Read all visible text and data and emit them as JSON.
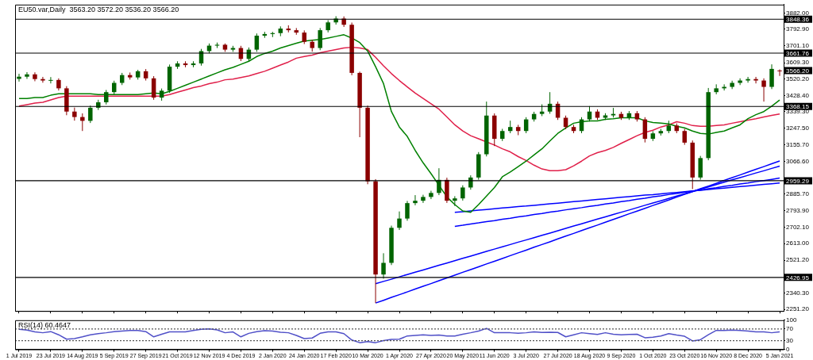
{
  "chart_data": [
    {
      "type": "candlestick",
      "title": "EU50.var,Daily  3563.20 3572.20 3536.20 3566.20",
      "categories": [
        "1 Jul 2019",
        null,
        null,
        null,
        "23 Jul 2019",
        null,
        null,
        null,
        "14 Aug 2019",
        null,
        null,
        null,
        "5 Sep 2019",
        null,
        null,
        null,
        "27 Sep 2019",
        null,
        null,
        null,
        "21 Oct 2019",
        null,
        null,
        null,
        "12 Nov 2019",
        null,
        null,
        null,
        "4 Dec 2019",
        null,
        null,
        null,
        "2 Jan 2020",
        null,
        null,
        null,
        "24 Jan 2020",
        null,
        null,
        null,
        "17 Feb 2020",
        null,
        null,
        null,
        "10 Mar 2020",
        null,
        null,
        null,
        "1 Apr 2020",
        null,
        null,
        null,
        "27 Apr 2020",
        null,
        null,
        null,
        "20 May 2020",
        null,
        null,
        null,
        "11 Jun 2020",
        null,
        null,
        null,
        "3 Jul 2020",
        null,
        null,
        null,
        "27 Jul 2020",
        null,
        null,
        null,
        "18 Aug 2020",
        null,
        null,
        null,
        "9 Sep 2020",
        null,
        null,
        null,
        "1 Oct 2020",
        null,
        null,
        null,
        "23 Oct 2020",
        null,
        null,
        null,
        "16 Nov 2020",
        null,
        null,
        null,
        "8 Dec 2020",
        null,
        null,
        null,
        "5 Jan 2021"
      ],
      "ohlc": [
        [
          3520,
          3548,
          3505,
          3532
        ],
        [
          3532,
          3557,
          3520,
          3545
        ],
        [
          3545,
          3556,
          3507,
          3519
        ],
        [
          3519,
          3531,
          3499,
          3511
        ],
        [
          3511,
          3530,
          3495,
          3514
        ],
        [
          3514,
          3523,
          3456,
          3468
        ],
        [
          3468,
          3480,
          3320,
          3340
        ],
        [
          3340,
          3362,
          3290,
          3310
        ],
        [
          3310,
          3330,
          3233,
          3289
        ],
        [
          3289,
          3373,
          3277,
          3361
        ],
        [
          3361,
          3405,
          3349,
          3391
        ],
        [
          3391,
          3459,
          3379,
          3447
        ],
        [
          3447,
          3510,
          3435,
          3498
        ],
        [
          3498,
          3553,
          3486,
          3541
        ],
        [
          3541,
          3555,
          3516,
          3528
        ],
        [
          3528,
          3570,
          3516,
          3562
        ],
        [
          3562,
          3574,
          3511,
          3523
        ],
        [
          3523,
          3535,
          3405,
          3417
        ],
        [
          3417,
          3467,
          3400,
          3455
        ],
        [
          3455,
          3599,
          3443,
          3587
        ],
        [
          3587,
          3617,
          3575,
          3605
        ],
        [
          3605,
          3617,
          3584,
          3596
        ],
        [
          3596,
          3617,
          3584,
          3605
        ],
        [
          3605,
          3685,
          3593,
          3673
        ],
        [
          3673,
          3715,
          3661,
          3703
        ],
        [
          3703,
          3720,
          3690,
          3708
        ],
        [
          3708,
          3715,
          3669,
          3681
        ],
        [
          3681,
          3702,
          3669,
          3690
        ],
        [
          3690,
          3702,
          3618,
          3630
        ],
        [
          3630,
          3693,
          3618,
          3681
        ],
        [
          3681,
          3770,
          3669,
          3758
        ],
        [
          3758,
          3779,
          3746,
          3767
        ],
        [
          3767,
          3779,
          3750,
          3772
        ],
        [
          3772,
          3809,
          3755,
          3797
        ],
        [
          3797,
          3815,
          3776,
          3788
        ],
        [
          3788,
          3800,
          3763,
          3775
        ],
        [
          3775,
          3787,
          3712,
          3724
        ],
        [
          3724,
          3736,
          3670,
          3690
        ],
        [
          3690,
          3800,
          3678,
          3788
        ],
        [
          3788,
          3843,
          3776,
          3831
        ],
        [
          3831,
          3865,
          3819,
          3852
        ],
        [
          3852,
          3864,
          3806,
          3818
        ],
        [
          3818,
          3830,
          3540,
          3553
        ],
        [
          3553,
          3560,
          3199,
          3361
        ],
        [
          3361,
          3373,
          2940,
          2956
        ],
        [
          2956,
          2968,
          2286,
          2443
        ],
        [
          2443,
          2560,
          2420,
          2507
        ],
        [
          2507,
          2712,
          2495,
          2700
        ],
        [
          2700,
          2790,
          2688,
          2751
        ],
        [
          2751,
          2848,
          2739,
          2836
        ],
        [
          2836,
          2880,
          2824,
          2849
        ],
        [
          2849,
          2882,
          2837,
          2870
        ],
        [
          2870,
          2904,
          2858,
          2892
        ],
        [
          2892,
          3028,
          2880,
          2964
        ],
        [
          2964,
          2976,
          2837,
          2849
        ],
        [
          2849,
          2874,
          2820,
          2862
        ],
        [
          2862,
          2934,
          2850,
          2922
        ],
        [
          2922,
          2989,
          2910,
          2977
        ],
        [
          2977,
          3117,
          2965,
          3105
        ],
        [
          3105,
          3395,
          3093,
          3318
        ],
        [
          3318,
          3330,
          3150,
          3190
        ],
        [
          3190,
          3245,
          3178,
          3233
        ],
        [
          3233,
          3290,
          3221,
          3255
        ],
        [
          3255,
          3267,
          3210,
          3233
        ],
        [
          3233,
          3309,
          3221,
          3297
        ],
        [
          3297,
          3339,
          3285,
          3327
        ],
        [
          3327,
          3380,
          3315,
          3340
        ],
        [
          3340,
          3447,
          3328,
          3383
        ],
        [
          3383,
          3395,
          3294,
          3306
        ],
        [
          3306,
          3318,
          3243,
          3255
        ],
        [
          3255,
          3267,
          3221,
          3233
        ],
        [
          3233,
          3309,
          3221,
          3297
        ],
        [
          3297,
          3370,
          3285,
          3340
        ],
        [
          3340,
          3352,
          3294,
          3306
        ],
        [
          3306,
          3331,
          3294,
          3319
        ],
        [
          3319,
          3360,
          3307,
          3327
        ],
        [
          3327,
          3339,
          3294,
          3306
        ],
        [
          3306,
          3343,
          3294,
          3331
        ],
        [
          3331,
          3343,
          3285,
          3297
        ],
        [
          3297,
          3309,
          3170,
          3190
        ],
        [
          3190,
          3232,
          3178,
          3220
        ],
        [
          3220,
          3245,
          3208,
          3233
        ],
        [
          3233,
          3290,
          3221,
          3263
        ],
        [
          3263,
          3275,
          3221,
          3233
        ],
        [
          3233,
          3245,
          3157,
          3169
        ],
        [
          3169,
          3181,
          2913,
          2977
        ],
        [
          2977,
          3096,
          2965,
          3084
        ],
        [
          3084,
          3470,
          3072,
          3447
        ],
        [
          3447,
          3490,
          3435,
          3468
        ],
        [
          3468,
          3490,
          3456,
          3476
        ],
        [
          3476,
          3510,
          3464,
          3498
        ],
        [
          3498,
          3523,
          3486,
          3511
        ],
        [
          3511,
          3531,
          3499,
          3519
        ],
        [
          3519,
          3531,
          3495,
          3511
        ],
        [
          3511,
          3523,
          3395,
          3476
        ],
        [
          3476,
          3600,
          3464,
          3575
        ],
        [
          3563.2,
          3572.2,
          3536.2,
          3566.2
        ]
      ],
      "colors": [
        "#006400",
        "#006400",
        "#8b0000",
        "#8b0000",
        "#006400",
        "#8b0000",
        "#8b0000",
        "#8b0000",
        "#8b0000",
        "#006400",
        "#006400",
        "#006400",
        "#006400",
        "#006400",
        "#8b0000",
        "#006400",
        "#8b0000",
        "#8b0000",
        "#006400",
        "#006400",
        "#006400",
        "#8b0000",
        "#006400",
        "#006400",
        "#006400",
        "#006400",
        "#8b0000",
        "#006400",
        "#8b0000",
        "#006400",
        "#006400",
        "#006400",
        "#006400",
        "#006400",
        "#8b0000",
        "#8b0000",
        "#8b0000",
        "#8b0000",
        "#006400",
        "#006400",
        "#006400",
        "#8b0000",
        "#8b0000",
        "#8b0000",
        "#8b0000",
        "#8b0000",
        "#006400",
        "#006400",
        "#006400",
        "#006400",
        "#006400",
        "#006400",
        "#006400",
        "#006400",
        "#8b0000",
        "#006400",
        "#006400",
        "#006400",
        "#006400",
        "#006400",
        "#8b0000",
        "#006400",
        "#006400",
        "#8b0000",
        "#006400",
        "#006400",
        "#006400",
        "#006400",
        "#8b0000",
        "#8b0000",
        "#8b0000",
        "#006400",
        "#006400",
        "#8b0000",
        "#006400",
        "#006400",
        "#8b0000",
        "#006400",
        "#8b0000",
        "#8b0000",
        "#006400",
        "#006400",
        "#006400",
        "#8b0000",
        "#8b0000",
        "#8b0000",
        "#006400",
        "#006400",
        "#006400",
        "#006400",
        "#006400",
        "#006400",
        "#006400",
        "#8b0000",
        "#8b0000",
        "#006400",
        "#8b0000"
      ],
      "series": [
        {
          "type": "line",
          "color": "#008000",
          "values": [
            3412,
            3412,
            3417,
            3417,
            3430,
            3438,
            3438,
            3438,
            3438,
            3438,
            3434,
            3434,
            3434,
            3434,
            3434,
            3434,
            3438,
            3442,
            3438,
            3451,
            3468,
            3485,
            3502,
            3519,
            3536,
            3553,
            3570,
            3583,
            3600,
            3617,
            3643,
            3660,
            3673,
            3690,
            3703,
            3716,
            3728,
            3733,
            3737,
            3745,
            3754,
            3763,
            3745,
            3720,
            3673,
            3587,
            3494,
            3340,
            3255,
            3203,
            3126,
            3058,
            2998,
            2934,
            2870,
            2828,
            2793,
            2785,
            2828,
            2875,
            2922,
            2981,
            3007,
            3037,
            3067,
            3101,
            3135,
            3178,
            3220,
            3250,
            3276,
            3284,
            3289,
            3289,
            3297,
            3301,
            3306,
            3306,
            3306,
            3289,
            3280,
            3276,
            3272,
            3259,
            3250,
            3233,
            3220,
            3216,
            3225,
            3233,
            3250,
            3267,
            3301,
            3323,
            3340,
            3370,
            3404
          ]
        },
        {
          "type": "line",
          "color": "#e0204a",
          "values": [
            3370,
            3378,
            3387,
            3391,
            3404,
            3417,
            3425,
            3425,
            3425,
            3425,
            3425,
            3425,
            3425,
            3425,
            3425,
            3425,
            3425,
            3425,
            3425,
            3434,
            3447,
            3459,
            3472,
            3481,
            3494,
            3502,
            3515,
            3519,
            3528,
            3536,
            3549,
            3562,
            3579,
            3596,
            3613,
            3634,
            3643,
            3651,
            3664,
            3673,
            3681,
            3690,
            3694,
            3690,
            3681,
            3639,
            3592,
            3549,
            3511,
            3476,
            3442,
            3412,
            3383,
            3353,
            3310,
            3267,
            3233,
            3207,
            3190,
            3173,
            3156,
            3135,
            3118,
            3092,
            3071,
            3045,
            3024,
            3015,
            3015,
            3020,
            3041,
            3067,
            3096,
            3114,
            3126,
            3143,
            3165,
            3186,
            3207,
            3225,
            3237,
            3255,
            3267,
            3284,
            3276,
            3263,
            3259,
            3259,
            3263,
            3267,
            3276,
            3284,
            3293,
            3301,
            3310,
            3319,
            3327
          ]
        },
        {
          "type": "line",
          "color": "#0000ff",
          "values": [
            null,
            null,
            null,
            null,
            null,
            null,
            null,
            null,
            null,
            null,
            null,
            null,
            null,
            null,
            null,
            null,
            null,
            null,
            null,
            null,
            null,
            null,
            null,
            null,
            null,
            null,
            null,
            null,
            null,
            null,
            null,
            null,
            null,
            null,
            null,
            null,
            null,
            null,
            null,
            null,
            null,
            null,
            null,
            null,
            null,
            2286,
            2301,
            2317,
            2332,
            2347,
            2363,
            2378,
            2393,
            2409,
            2424,
            2439,
            2455,
            2470,
            2485,
            2501,
            2516,
            2531,
            2547,
            2562,
            2577,
            2593,
            2608,
            2623,
            2639,
            2654,
            2669,
            2685,
            2700,
            2715,
            2731,
            2746,
            2761,
            2777,
            2792,
            2807,
            2823,
            2838,
            2853,
            2869,
            2884,
            2899,
            2915,
            2930,
            2945,
            2961,
            2976,
            2991,
            3007,
            3022,
            3037,
            3053,
            3068
          ]
        },
        {
          "type": "line",
          "color": "#0000ff",
          "values": [
            null,
            null,
            null,
            null,
            null,
            null,
            null,
            null,
            null,
            null,
            null,
            null,
            null,
            null,
            null,
            null,
            null,
            null,
            null,
            null,
            null,
            null,
            null,
            null,
            null,
            null,
            null,
            null,
            null,
            null,
            null,
            null,
            null,
            null,
            null,
            null,
            null,
            null,
            null,
            null,
            null,
            null,
            null,
            null,
            null,
            2392,
            2405,
            2417,
            2430,
            2443,
            2456,
            2468,
            2481,
            2494,
            2506,
            2519,
            2532,
            2544,
            2557,
            2570,
            2583,
            2595,
            2608,
            2621,
            2633,
            2646,
            2659,
            2671,
            2684,
            2697,
            2710,
            2722,
            2735,
            2748,
            2760,
            2773,
            2786,
            2798,
            2811,
            2824,
            2837,
            2849,
            2862,
            2875,
            2887,
            2900,
            2913,
            2925,
            2938,
            2951,
            2964,
            2976,
            2989,
            3002,
            3014,
            3027,
            3040
          ]
        },
        {
          "type": "line",
          "color": "#0000ff",
          "values": [
            null,
            null,
            null,
            null,
            null,
            null,
            null,
            null,
            null,
            null,
            null,
            null,
            null,
            null,
            null,
            null,
            null,
            null,
            null,
            null,
            null,
            null,
            null,
            null,
            null,
            null,
            null,
            null,
            null,
            null,
            null,
            null,
            null,
            null,
            null,
            null,
            null,
            null,
            null,
            null,
            null,
            null,
            null,
            null,
            null,
            null,
            null,
            null,
            null,
            null,
            null,
            null,
            null,
            null,
            null,
            2785,
            2789,
            2793,
            2797,
            2801,
            2805,
            2809,
            2813,
            2817,
            2820,
            2824,
            2828,
            2832,
            2836,
            2840,
            2844,
            2848,
            2852,
            2856,
            2860,
            2864,
            2868,
            2872,
            2876,
            2880,
            2883,
            2887,
            2891,
            2895,
            2899,
            2903,
            2907,
            2911,
            2915,
            2919,
            2923,
            2927,
            2931,
            2935,
            2939,
            2943,
            2947
          ]
        },
        {
          "type": "line",
          "color": "#0000ff",
          "values": [
            null,
            null,
            null,
            null,
            null,
            null,
            null,
            null,
            null,
            null,
            null,
            null,
            null,
            null,
            null,
            null,
            null,
            null,
            null,
            null,
            null,
            null,
            null,
            null,
            null,
            null,
            null,
            null,
            null,
            null,
            null,
            null,
            null,
            null,
            null,
            null,
            null,
            null,
            null,
            null,
            null,
            null,
            null,
            null,
            null,
            null,
            null,
            null,
            null,
            null,
            null,
            null,
            null,
            null,
            null,
            2708,
            2714,
            2721,
            2727,
            2734,
            2740,
            2747,
            2753,
            2760,
            2766,
            2773,
            2779,
            2786,
            2792,
            2799,
            2805,
            2811,
            2818,
            2824,
            2831,
            2837,
            2844,
            2850,
            2857,
            2863,
            2870,
            2876,
            2883,
            2889,
            2896,
            2902,
            2908,
            2915,
            2921,
            2928,
            2934,
            2941,
            2947,
            2954,
            2960,
            2967,
            2974
          ]
        }
      ],
      "ylim": [
        2242,
        3929
      ],
      "yticks": [
        {
          "value": 2251.2,
          "label": "2251.20"
        },
        {
          "value": 2340.3,
          "label": "2340.30"
        },
        {
          "value": 2521.2,
          "label": "2521.20"
        },
        {
          "value": 2613,
          "label": "2613.00"
        },
        {
          "value": 2702.1,
          "label": "2702.10"
        },
        {
          "value": 2793.9,
          "label": "2793.90"
        },
        {
          "value": 2885.7,
          "label": "2885.70"
        },
        {
          "value": 3066.6,
          "label": "3066.60"
        },
        {
          "value": 3155.7,
          "label": "3155.70"
        },
        {
          "value": 3247.5,
          "label": "3247.50"
        },
        {
          "value": 3339.3,
          "label": "3339.30"
        },
        {
          "value": 3428.4,
          "label": "3428.40"
        },
        {
          "value": 3520.2,
          "label": "3520.20"
        },
        {
          "value": 3609.3,
          "label": "3609.30"
        },
        {
          "value": 3701.1,
          "label": "3701.10"
        },
        {
          "value": 3792.9,
          "label": "3792.90"
        },
        {
          "value": 3882,
          "label": "3882.00"
        }
      ],
      "ref_lines": [
        {
          "axis": "y",
          "value": 3848.36,
          "label": "3848.36",
          "color": "#000000"
        },
        {
          "axis": "y",
          "value": 3661.76,
          "label": "3661.76",
          "color": "#000000"
        },
        {
          "axis": "y",
          "value": 3368.15,
          "label": "3368.15",
          "color": "#000000"
        },
        {
          "axis": "y",
          "value": 2959.29,
          "label": "2959.29",
          "color": "#000000"
        },
        {
          "axis": "y",
          "value": 2426.95,
          "label": "2426.95",
          "color": "#000000"
        }
      ],
      "annotations": [
        {
          "text": "3566.20",
          "x": "5 Jan 2021",
          "y": 3566.2
        }
      ],
      "marker": "none",
      "tick_labels": "y"
    },
    {
      "type": "line",
      "title": "RSI(14) 60.4647",
      "categories": [
        "1 Jul 2019",
        null,
        null,
        null,
        "23 Jul 2019",
        null,
        null,
        null,
        "14 Aug 2019",
        null,
        null,
        null,
        "5 Sep 2019",
        null,
        null,
        null,
        "27 Sep 2019",
        null,
        null,
        null,
        "21 Oct 2019",
        null,
        null,
        null,
        "12 Nov 2019",
        null,
        null,
        null,
        "4 Dec 2019",
        null,
        null,
        null,
        "2 Jan 2020",
        null,
        null,
        null,
        "24 Jan 2020",
        null,
        null,
        null,
        "17 Feb 2020",
        null,
        null,
        null,
        "10 Mar 2020",
        null,
        null,
        null,
        "1 Apr 2020",
        null,
        null,
        null,
        "27 Apr 2020",
        null,
        null,
        null,
        "20 May 2020",
        null,
        null,
        null,
        "11 Jun 2020",
        null,
        null,
        null,
        "3 Jul 2020",
        null,
        null,
        null,
        "27 Jul 2020",
        null,
        null,
        null,
        "18 Aug 2020",
        null,
        null,
        null,
        "9 Sep 2020",
        null,
        null,
        null,
        "1 Oct 2020",
        null,
        null,
        null,
        "23 Oct 2020",
        null,
        null,
        null,
        "16 Nov 2020",
        null,
        null,
        null,
        "8 Dec 2020",
        null,
        null,
        null,
        "5 Jan 2021"
      ],
      "values": [
        69,
        66,
        60,
        57,
        61,
        50,
        35,
        37,
        43,
        50,
        54,
        57,
        61,
        63,
        65,
        65,
        61,
        43,
        52,
        60,
        60,
        60,
        65,
        69,
        70,
        67,
        57,
        60,
        43,
        55,
        61,
        64,
        63,
        59,
        57,
        48,
        37,
        39,
        55,
        60,
        60,
        54,
        32,
        23,
        27,
        23,
        30,
        34,
        35,
        46,
        48,
        50,
        48,
        49,
        46,
        46,
        52,
        57,
        63,
        72,
        57,
        57,
        57,
        55,
        57,
        60,
        58,
        59,
        58,
        43,
        50,
        57,
        54,
        51,
        57,
        52,
        50,
        51,
        52,
        40,
        42,
        46,
        54,
        49,
        45,
        29,
        33,
        50,
        65,
        65,
        66,
        65,
        63,
        60,
        60,
        57,
        60
      ],
      "color": "#5050c8",
      "ylim": [
        0,
        100
      ],
      "yticks": [
        0,
        30,
        70,
        100
      ],
      "ref_lines": [
        {
          "axis": "y",
          "value": 30,
          "color": "#555555",
          "line_style": "dotted"
        },
        {
          "axis": "y",
          "value": 70,
          "color": "#555555",
          "line_style": "dotted"
        }
      ],
      "marker": "none"
    }
  ]
}
